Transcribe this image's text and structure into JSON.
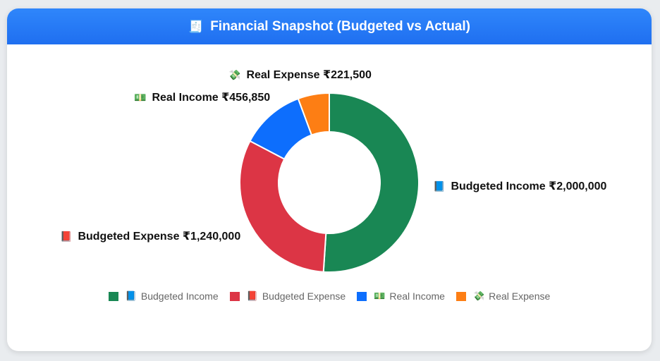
{
  "header": {
    "icon": "🧾",
    "title": "Financial Snapshot (Budgeted vs Actual)"
  },
  "chart_data": {
    "type": "pie",
    "donut": true,
    "categories": [
      "📘 Budgeted Income",
      "📕 Budgeted Expense",
      "💵 Real Income",
      "💸 Real Expense"
    ],
    "values": [
      2000000,
      1240000,
      456850,
      221500
    ],
    "colors": [
      "#198754",
      "#dc3545",
      "#0d6efd",
      "#fd7e14"
    ],
    "legend_position": "bottom",
    "data_labels": [
      {
        "emoji": "📘",
        "text": "Budgeted Income ₹2,000,000"
      },
      {
        "emoji": "📕",
        "text": "Budgeted Expense ₹1,240,000"
      },
      {
        "emoji": "💵",
        "text": "Real Income ₹456,850"
      },
      {
        "emoji": "💸",
        "text": "Real Expense ₹221,500"
      }
    ]
  },
  "legend": [
    {
      "emoji": "📘",
      "label": "Budgeted Income",
      "color": "#198754"
    },
    {
      "emoji": "📕",
      "label": "Budgeted Expense",
      "color": "#dc3545"
    },
    {
      "emoji": "💵",
      "label": "Real Income",
      "color": "#0d6efd"
    },
    {
      "emoji": "💸",
      "label": "Real Expense",
      "color": "#fd7e14"
    }
  ]
}
